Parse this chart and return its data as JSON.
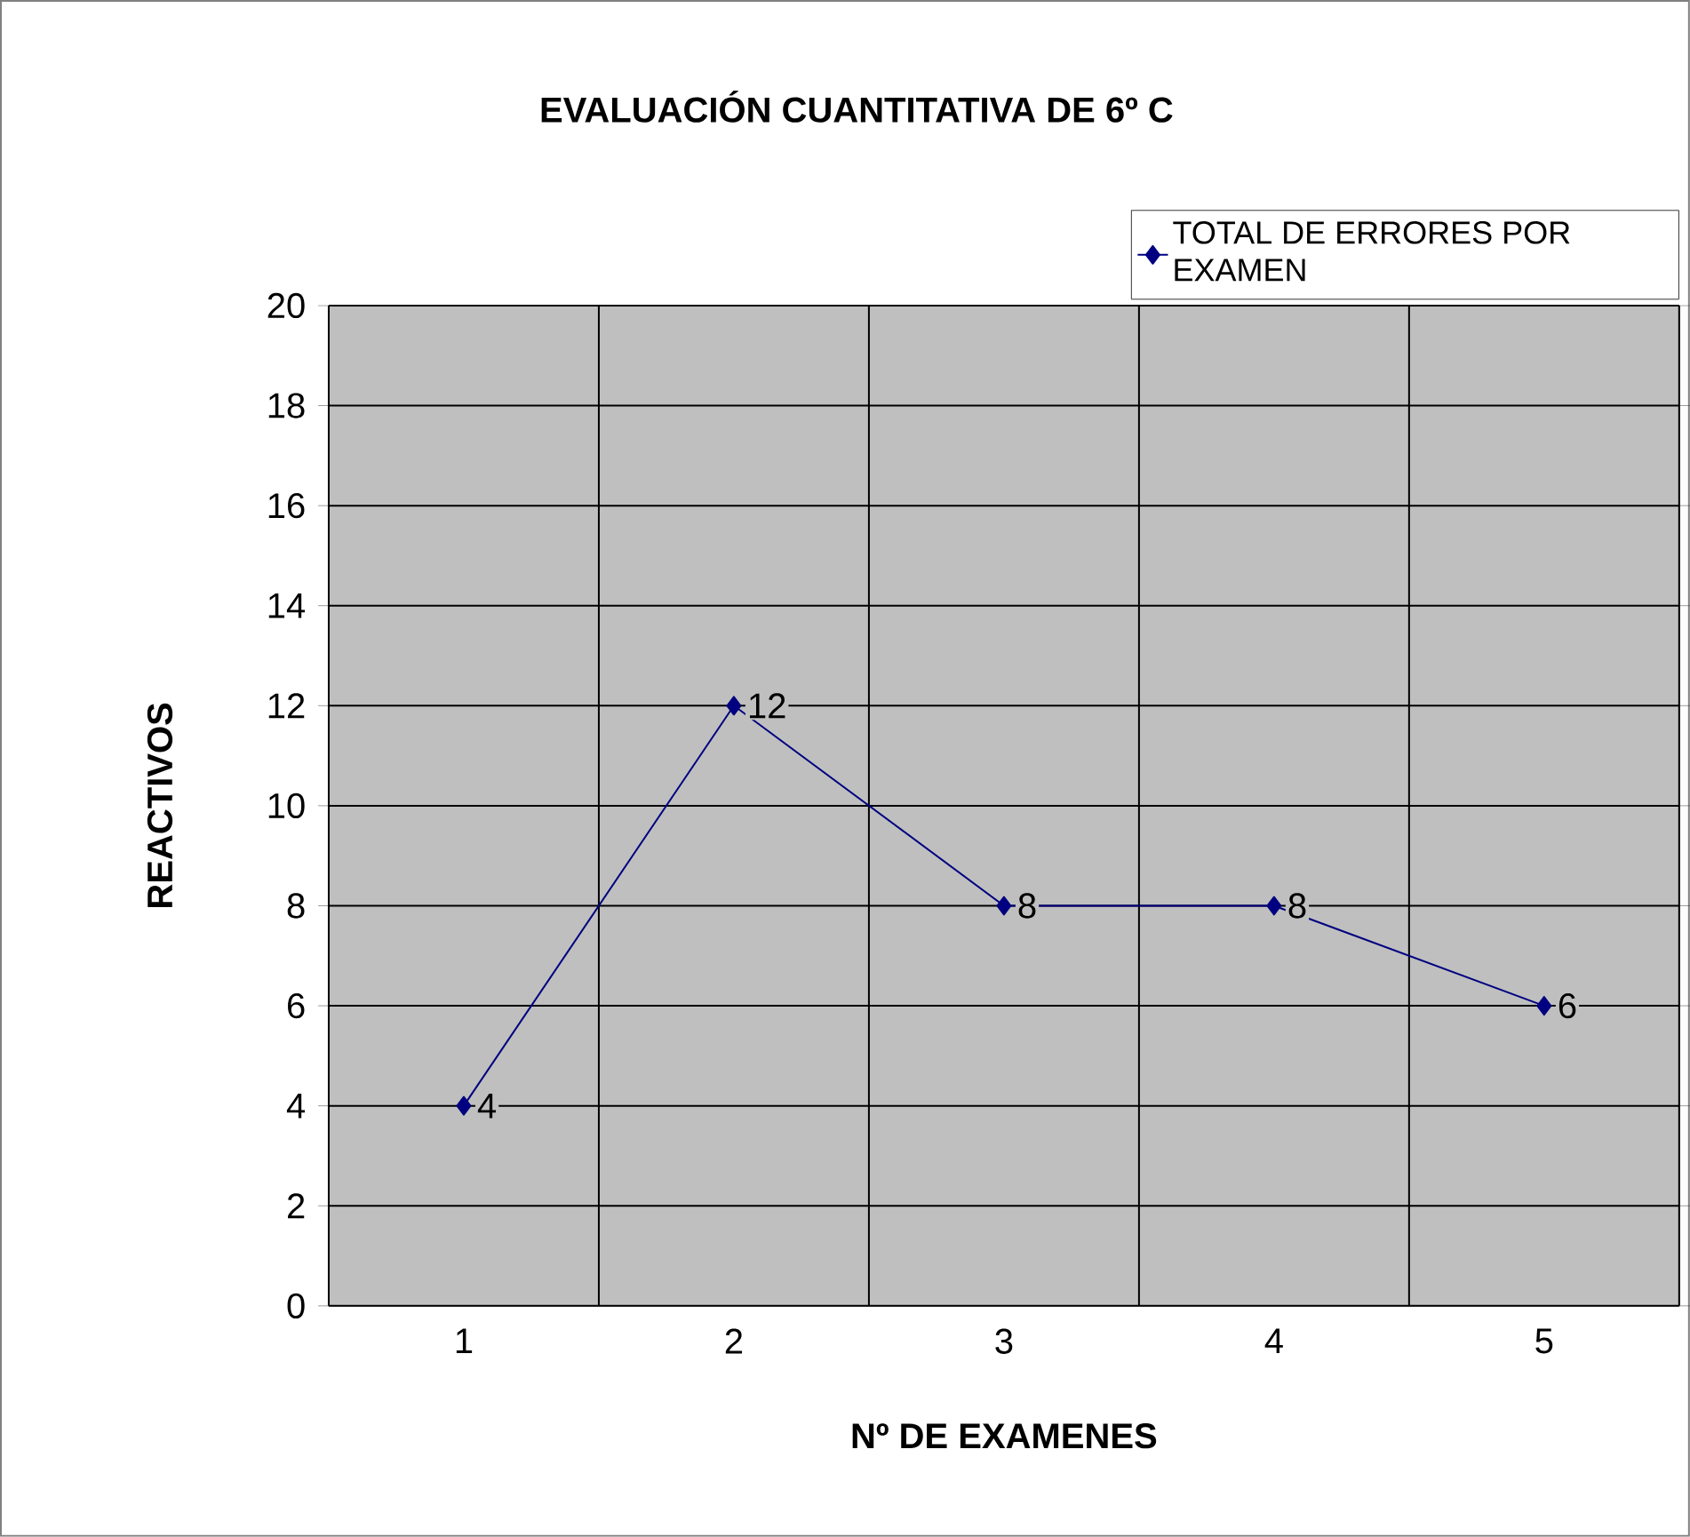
{
  "chart_data": {
    "type": "line",
    "title": "EVALUACIÓN CUANTITATIVA DE 6º C",
    "xlabel": "Nº DE EXAMENES",
    "ylabel": "REACTIVOS",
    "categories": [
      "1",
      "2",
      "3",
      "4",
      "5"
    ],
    "series": [
      {
        "name": "TOTAL DE ERRORES POR EXAMEN",
        "color": "#000080",
        "values": [
          4,
          12,
          8,
          8,
          6
        ]
      }
    ],
    "ylim": [
      0,
      20
    ],
    "yticks": [
      0,
      2,
      4,
      6,
      8,
      10,
      12,
      14,
      16,
      18,
      20
    ],
    "grid": true,
    "legend": "top right",
    "marker": "diamond",
    "line_style": "solid",
    "data_labels": true
  }
}
